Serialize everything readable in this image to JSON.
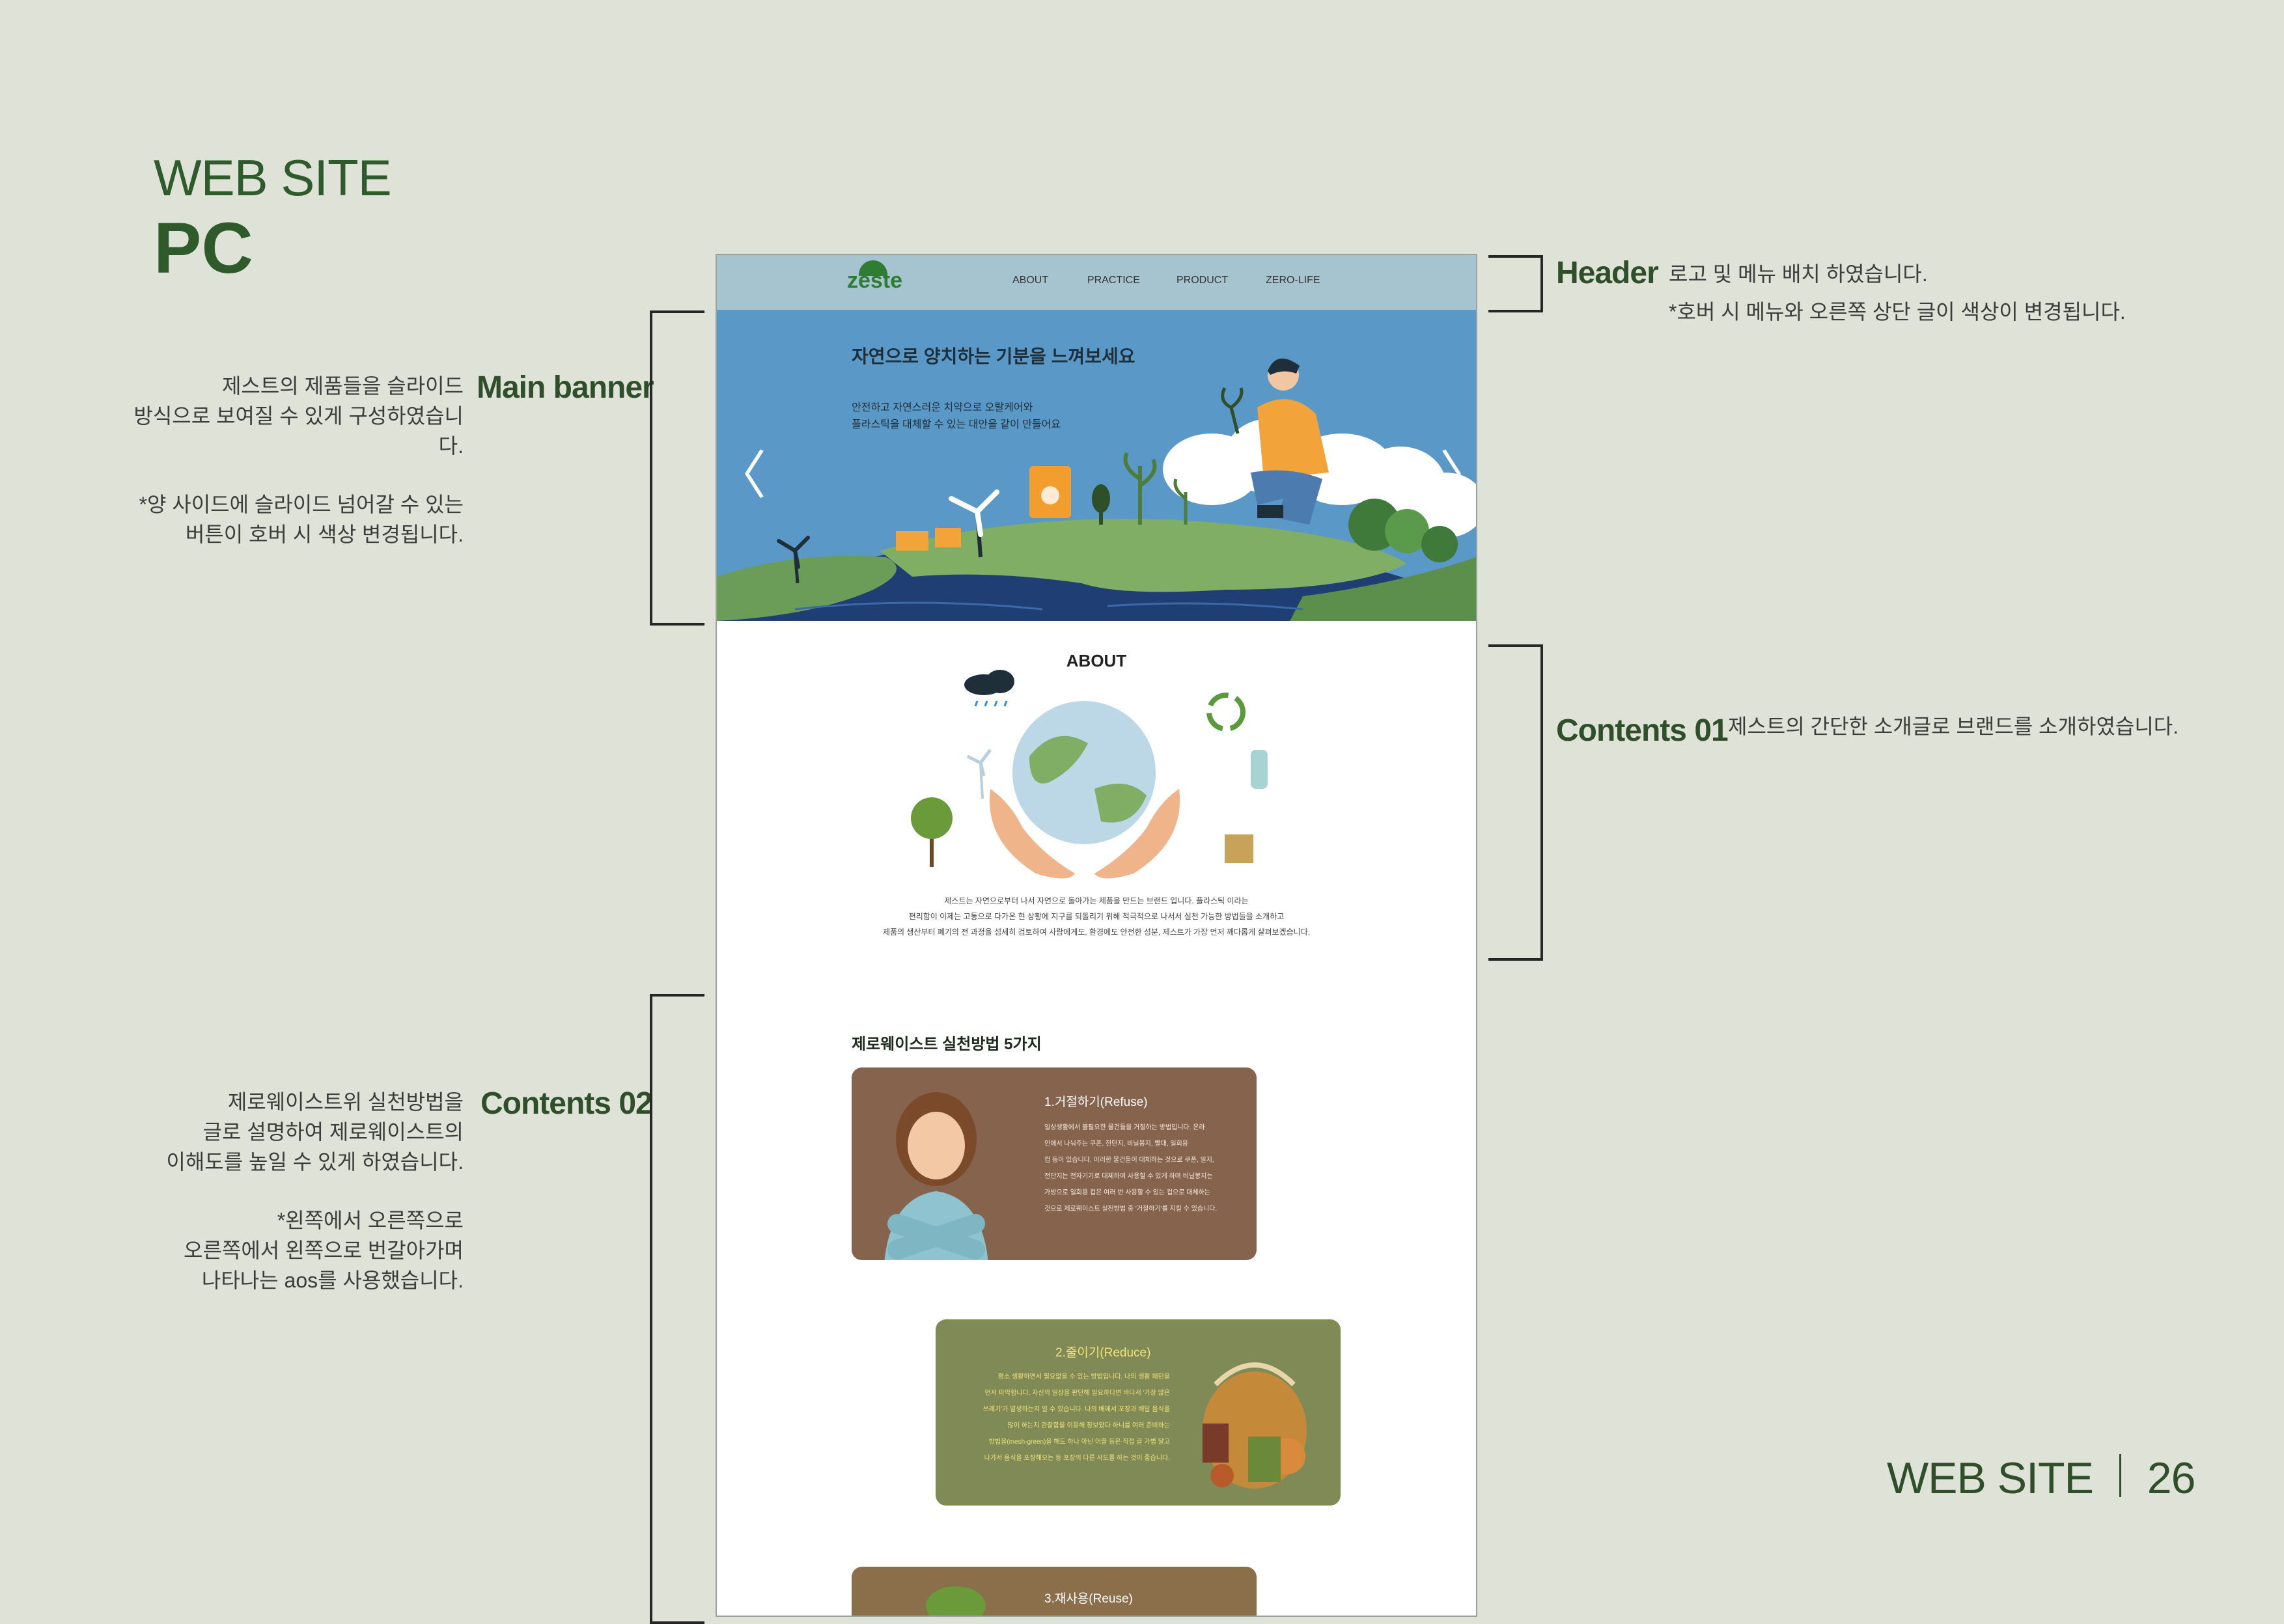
{
  "page": {
    "title_line1": "WEB SITE",
    "title_line2": "PC",
    "footer_label": "WEB SITE",
    "footer_page": "26"
  },
  "annotations": {
    "header": {
      "label": "Header",
      "desc1": "로고 및 메뉴 배치 하였습니다.",
      "desc2": "*호버 시 메뉴와 오른쪽 상단 글이 색상이 변경됩니다."
    },
    "main_banner": {
      "label": "Main banner",
      "desc1": "제스트의 제품들을 슬라이드",
      "desc2": "방식으로 보여질 수 있게 구성하였습니다.",
      "desc3": "*양 사이드에 슬라이드 넘어갈 수 있는",
      "desc4": "버튼이 호버 시 색상 변경됩니다."
    },
    "contents01": {
      "label": "Contents 01",
      "desc1": "제스트의 간단한 소개글로 브랜드를 소개하였습니다."
    },
    "contents02": {
      "label": "Contents 02",
      "desc1": "제로웨이스트위 실천방법을",
      "desc2": "글로 설명하여 제로웨이스트의",
      "desc3": "이해도를 높일 수 있게 하였습니다.",
      "desc4": "*왼쪽에서 오른쪽으로",
      "desc5": "오른쪽에서 왼쪽으로 번갈아가며",
      "desc6": "나타나는 aos를 사용했습니다."
    }
  },
  "site": {
    "logo": "zeste",
    "nav": [
      "ABOUT",
      "PRACTICE",
      "PRODUCT",
      "ZERO-LIFE"
    ],
    "banner": {
      "title": "자연으로 양치하는 기분을 느껴보세요",
      "sub1": "안전하고 자연스러운 치약으로 오랄케어와",
      "sub2": "플라스틱을 대체할 수 있는 대안을 같이 만들어요",
      "prev_arrow": "〈",
      "next_arrow": "〉"
    },
    "about": {
      "title": "ABOUT",
      "text1": "제스트는 자연으로부터 나서 자연으로 돌아가는 제품을 만드는 브랜드 입니다. 플라스틱 이라는",
      "text2": "편리함이 이제는 고통으로 다가온 현 상황에 지구를 되돌리기 위해 적극적으로 나서서 실천 가능한 방법들을 소개하고",
      "text3": "제품의 생산부터 폐기의 전 과정을 섬세히 검토하여 사람에게도, 환경에도 안전한 성분, 제스트가 가장 먼저 깨다롭게 살펴보겠습니다."
    },
    "zerowaste": {
      "title": "제로웨이스트 실천방법 5가지",
      "cards": [
        {
          "title": "1.거절하기(Refuse)",
          "lines": [
            "일상생활에서 불필요한 물건들을 거절하는 방법입니다. 온라",
            "인에서 나눠주는 쿠폰, 전단지, 비닐봉지, 빨대, 일회용",
            "컵 등이 있습니다. 이러한 물건들이 대체하는 것으로 쿠폰, 일지,",
            "전단지는 전자기기로 대체하여 사용할 수 있게 하며 비닐봉지는",
            "가방으로 일회용 컵은 여러 번 사용할 수 있는 컵으로 대체하는",
            "것으로 제로웨이스트 실천방법 중 '거절하기'를 지킬 수 있습니다."
          ]
        },
        {
          "title": "2.줄이기(Reduce)",
          "lines": [
            "평소 생활하면서 필요없을 수 있는 방법입니다. 나의 생활 패턴을",
            "먼저 파악합니다. 자신의 일상을 판단해 필요하다면 바다서 '가장 많은",
            "쓰레기'가 발생하는지 알 수 있습니다. 나의 배에서 포장과 배달 음식을",
            "많이 하는지 관찰합을 이용해 장보았다 하니를 여러 준비하는",
            "방법을(mesh-green)을 해도 하나 아닌 어플 등은 직접 골 가볍 달고",
            "나가서 음식을 포장해오는 등 포장의 다른 사도를 하는 것이 좋습니다."
          ]
        },
        {
          "title": "3.재사용(Reuse)",
          "lines": []
        }
      ]
    }
  },
  "colors": {
    "page_bg": "#dfe2d7",
    "header_bg": "#a6c4d0",
    "banner_bg": "#5a98c7",
    "card1_bg": "#85634d",
    "card2_bg": "#7f8a57",
    "card3_bg": "#8a6f4a",
    "accent_green": "#2f5a2c"
  }
}
